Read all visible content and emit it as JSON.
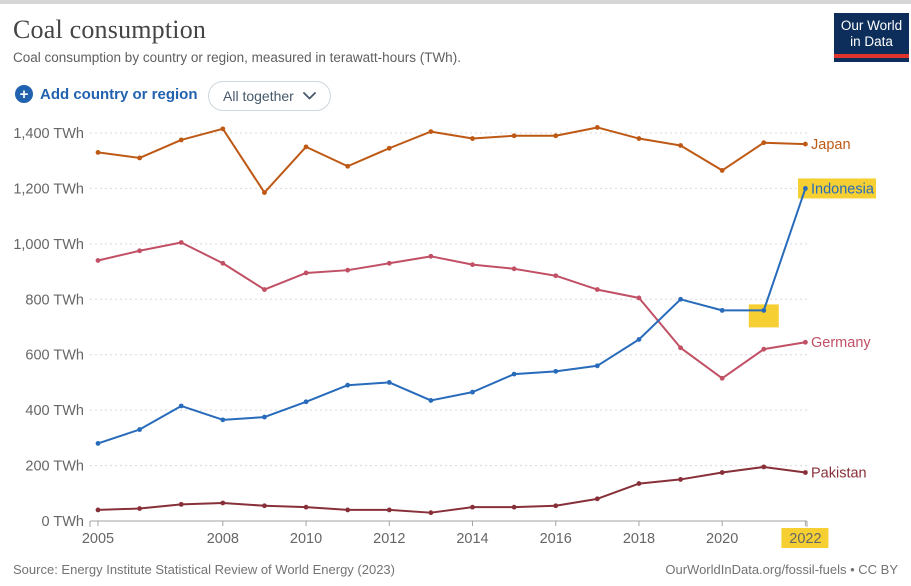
{
  "header": {
    "title": "Coal consumption",
    "subtitle": "Coal consumption by country or region, measured in terawatt-hours (TWh).",
    "logo": {
      "line1": "Our World",
      "line2": "in Data"
    }
  },
  "controls": {
    "add_button_label": "Add country or region",
    "dropdown_value": "All together"
  },
  "chart_data": {
    "type": "line",
    "title": "Coal consumption",
    "x": [
      2005,
      2006,
      2007,
      2008,
      2009,
      2010,
      2011,
      2012,
      2013,
      2014,
      2015,
      2016,
      2017,
      2018,
      2019,
      2020,
      2021,
      2022
    ],
    "x_axis": {
      "tick_labels": [
        "2005",
        "2008",
        "2010",
        "2012",
        "2014",
        "2016",
        "2018",
        "2020",
        "2022"
      ]
    },
    "y_axis": {
      "ticks": [
        0,
        200,
        400,
        600,
        800,
        1000,
        1200,
        1400
      ],
      "unit": "TWh",
      "range": [
        0,
        1400
      ],
      "grid": "dashed"
    },
    "series": [
      {
        "name": "Japan",
        "color": "#BE5915",
        "values": [
          1330,
          1310,
          1375,
          1415,
          1185,
          1350,
          1280,
          1345,
          1405,
          1380,
          1390,
          1390,
          1420,
          1380,
          1355,
          1265,
          1365,
          1360
        ]
      },
      {
        "name": "Germany",
        "color": "#C15065",
        "values": [
          940,
          975,
          1005,
          930,
          835,
          895,
          905,
          930,
          955,
          925,
          910,
          885,
          835,
          805,
          625,
          515,
          620,
          645
        ]
      },
      {
        "name": "Pakistan",
        "color": "#883039",
        "values": [
          40,
          45,
          60,
          65,
          55,
          50,
          40,
          40,
          30,
          50,
          50,
          55,
          80,
          135,
          150,
          175,
          195,
          175
        ]
      },
      {
        "name": "Indonesia",
        "color": "#286BBB",
        "values": [
          280,
          330,
          415,
          365,
          375,
          430,
          490,
          500,
          435,
          465,
          530,
          540,
          560,
          655,
          800,
          760,
          760,
          1200
        ],
        "label_highlighted": true
      }
    ],
    "annotations": {
      "highlight_color": "#F6D032",
      "highlighted_point": {
        "series": "Indonesia",
        "year": 2021
      },
      "highlighted_x_label": "2022",
      "highlighted_series_label": "Indonesia"
    },
    "legend_position": "right-of-line-ends"
  },
  "footer": {
    "source": "Source: Energy Institute Statistical Review of World Energy (2023)",
    "attribution": "OurWorldInData.org/fossil-fuels • CC BY"
  }
}
